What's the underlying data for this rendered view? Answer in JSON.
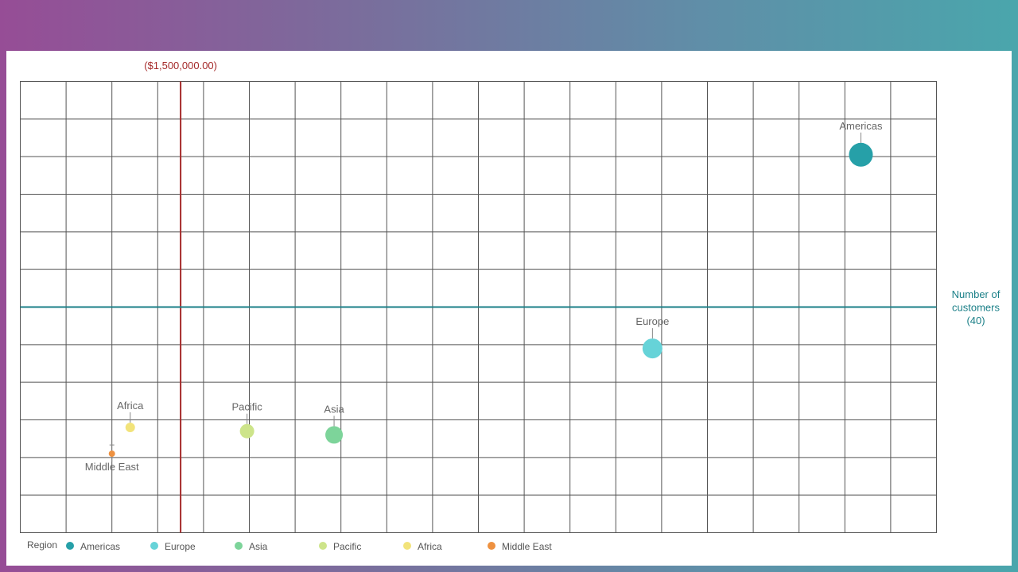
{
  "chart_data": {
    "type": "scatter",
    "x_reference": {
      "value": 1500000,
      "label": "($1,500,000.00)",
      "color": "#a52a2a"
    },
    "y_reference": {
      "value": 40,
      "label_lines": [
        "Number of",
        "customers",
        "(40)"
      ],
      "color": "#1a7f87"
    },
    "xlim": [
      0,
      20
    ],
    "ylim": [
      0,
      12
    ],
    "grid": true,
    "legend": {
      "title": "Region",
      "placement": "bottom-left",
      "items": [
        {
          "name": "Americas",
          "color": "#26a0a8"
        },
        {
          "name": "Europe",
          "color": "#66d3d8"
        },
        {
          "name": "Asia",
          "color": "#7dd49a"
        },
        {
          "name": "Pacific",
          "color": "#cde48a"
        },
        {
          "name": "Africa",
          "color": "#f2e37a"
        },
        {
          "name": "Middle East",
          "color": "#ee9140"
        }
      ]
    },
    "points": [
      {
        "name": "Americas",
        "x": 18.35,
        "y": 10.05,
        "size": 15,
        "color": "#26a0a8",
        "label_pos": "above"
      },
      {
        "name": "Europe",
        "x": 13.8,
        "y": 4.9,
        "size": 12.5,
        "color": "#66d3d8",
        "label_pos": "above"
      },
      {
        "name": "Asia",
        "x": 6.85,
        "y": 2.6,
        "size": 11,
        "color": "#7dd49a",
        "label_pos": "above"
      },
      {
        "name": "Pacific",
        "x": 4.95,
        "y": 2.7,
        "size": 9,
        "color": "#cde48a",
        "label_pos": "above"
      },
      {
        "name": "Africa",
        "x": 2.4,
        "y": 2.8,
        "size": 6,
        "color": "#f2e37a",
        "label_pos": "above"
      },
      {
        "name": "Middle East",
        "x": 2.0,
        "y": 2.1,
        "size": 4,
        "color": "#ee9140",
        "label_pos": "below"
      }
    ],
    "x_reference_pos": 3.5,
    "y_reference_pos": 6
  }
}
